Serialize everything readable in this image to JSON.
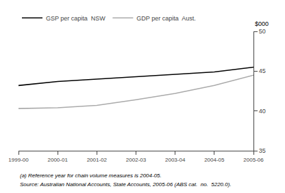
{
  "chart_data": {
    "type": "line",
    "categories": [
      "1999-00",
      "2000-01",
      "2001-02",
      "2002-03",
      "2003-04",
      "2004-05",
      "2005-06"
    ],
    "series": [
      {
        "name": "GSP per capita  NSW",
        "color": "#000000",
        "values": [
          43.2,
          43.7,
          44.0,
          44.3,
          44.6,
          44.9,
          45.5
        ]
      },
      {
        "name": "GDP per capita  Aust.",
        "color": "#aaaaaa",
        "values": [
          40.3,
          40.4,
          40.7,
          41.4,
          42.2,
          43.2,
          44.5
        ]
      }
    ],
    "ylabel": "$000",
    "ylim": [
      35,
      50
    ],
    "yticks": [
      35,
      40,
      45,
      50
    ],
    "grid": false,
    "legend": "upper left",
    "annotations": [
      "(a) Reference year for chain volume measures is 2004-05.",
      "Source: Australian National Accounts, State Accounts, 2005-06 (ABS cat.  no.  5220.0)."
    ]
  }
}
